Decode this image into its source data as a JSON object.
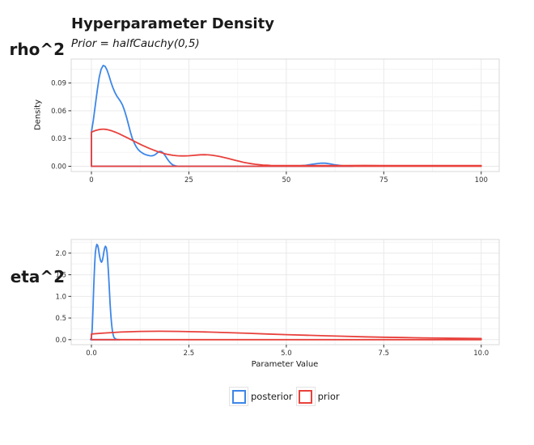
{
  "figure": {
    "title": "Hyperparameter Density",
    "subtitle": "Prior = halfCauchy(0,5)",
    "x_axis_title": "Parameter Value",
    "y_axis_title": "Density",
    "colors": {
      "posterior": "#3D86E8",
      "prior": "#E8413C",
      "grid_major": "#E9E9E9",
      "grid_minor": "#F4F4F4",
      "panel_border": "#D8D8D8",
      "tick_text": "#333333"
    },
    "legend": {
      "items": [
        {
          "label": "posterior",
          "color": "#3D86E8"
        },
        {
          "label": "prior",
          "color": "#E8413C"
        }
      ]
    }
  },
  "chart_data": [
    {
      "type": "area",
      "facet": "rho^2",
      "xlim": [
        -5.19,
        104.62
      ],
      "ylim": [
        -0.0057,
        0.1159
      ],
      "x_tick_values": [
        0,
        25,
        50,
        75,
        100
      ],
      "x_tick_labels": [
        "0",
        "25",
        "50",
        "75",
        "100"
      ],
      "x_minor": [
        12.5,
        37.5,
        62.5,
        87.5
      ],
      "y_tick_values": [
        0,
        0.03,
        0.06,
        0.09
      ],
      "y_tick_labels": [
        "0.00",
        "0.03",
        "0.06",
        "0.09"
      ],
      "y_minor": [
        0.015,
        0.045,
        0.075,
        0.105
      ],
      "series": [
        {
          "name": "posterior",
          "points": [
            [
              0,
              0
            ],
            [
              0,
              0.037
            ],
            [
              0.5,
              0.05
            ],
            [
              1,
              0.066
            ],
            [
              1.5,
              0.082
            ],
            [
              2,
              0.096
            ],
            [
              2.5,
              0.105
            ],
            [
              3,
              0.109
            ],
            [
              3.5,
              0.108
            ],
            [
              4,
              0.104
            ],
            [
              4.5,
              0.098
            ],
            [
              5,
              0.091
            ],
            [
              5.5,
              0.085
            ],
            [
              6,
              0.08
            ],
            [
              6.5,
              0.076
            ],
            [
              7,
              0.073
            ],
            [
              7.5,
              0.07
            ],
            [
              8,
              0.066
            ],
            [
              8.5,
              0.06
            ],
            [
              9,
              0.053
            ],
            [
              9.5,
              0.045
            ],
            [
              10,
              0.037
            ],
            [
              10.5,
              0.03
            ],
            [
              11,
              0.025
            ],
            [
              11.5,
              0.021
            ],
            [
              12,
              0.018
            ],
            [
              12.5,
              0.016
            ],
            [
              13,
              0.0145
            ],
            [
              13.5,
              0.0133
            ],
            [
              14,
              0.0124
            ],
            [
              14.5,
              0.0118
            ],
            [
              15,
              0.0114
            ],
            [
              15.5,
              0.0113
            ],
            [
              16,
              0.0118
            ],
            [
              16.5,
              0.013
            ],
            [
              17,
              0.0148
            ],
            [
              17.5,
              0.016
            ],
            [
              18,
              0.0158
            ],
            [
              18.5,
              0.014
            ],
            [
              19,
              0.011
            ],
            [
              19.5,
              0.0077
            ],
            [
              20,
              0.0048
            ],
            [
              20.5,
              0.0026
            ],
            [
              21,
              0.0012
            ],
            [
              21.5,
              0.0005
            ],
            [
              22,
              0.0001
            ],
            [
              23,
              0
            ],
            [
              50,
              0
            ],
            [
              53,
              0.0003
            ],
            [
              55,
              0.001
            ],
            [
              56.5,
              0.002
            ],
            [
              58,
              0.003
            ],
            [
              59,
              0.0034
            ],
            [
              60,
              0.0033
            ],
            [
              61,
              0.0027
            ],
            [
              62.5,
              0.0016
            ],
            [
              64,
              0.0007
            ],
            [
              65.5,
              0.0002
            ],
            [
              67,
              0
            ]
          ]
        },
        {
          "name": "prior",
          "points": [
            [
              0,
              0
            ],
            [
              0,
              0.0368
            ],
            [
              0.5,
              0.0378
            ],
            [
              1,
              0.0386
            ],
            [
              1.5,
              0.0392
            ],
            [
              2,
              0.0397
            ],
            [
              2.5,
              0.04
            ],
            [
              3,
              0.0401
            ],
            [
              3.5,
              0.04
            ],
            [
              4,
              0.0397
            ],
            [
              4.5,
              0.0392
            ],
            [
              5,
              0.0386
            ],
            [
              5.5,
              0.0379
            ],
            [
              6,
              0.0371
            ],
            [
              7,
              0.0353
            ],
            [
              8,
              0.0333
            ],
            [
              9,
              0.0312
            ],
            [
              10,
              0.0291
            ],
            [
              11,
              0.0269
            ],
            [
              12,
              0.0248
            ],
            [
              13,
              0.0228
            ],
            [
              14,
              0.0209
            ],
            [
              15,
              0.0191
            ],
            [
              16,
              0.0174
            ],
            [
              17,
              0.0159
            ],
            [
              18,
              0.0146
            ],
            [
              19,
              0.0134
            ],
            [
              20,
              0.0125
            ],
            [
              21,
              0.0118
            ],
            [
              22,
              0.0114
            ],
            [
              23,
              0.0112
            ],
            [
              24,
              0.0112
            ],
            [
              25,
              0.0114
            ],
            [
              26,
              0.0117
            ],
            [
              27,
              0.0121
            ],
            [
              28,
              0.0124
            ],
            [
              29,
              0.0125
            ],
            [
              30,
              0.0123
            ],
            [
              31,
              0.0119
            ],
            [
              32,
              0.0113
            ],
            [
              33,
              0.0105
            ],
            [
              34,
              0.0095
            ],
            [
              35,
              0.0085
            ],
            [
              36,
              0.0074
            ],
            [
              37,
              0.0063
            ],
            [
              38,
              0.0053
            ],
            [
              39,
              0.0043
            ],
            [
              40,
              0.0035
            ],
            [
              41,
              0.0028
            ],
            [
              42,
              0.0022
            ],
            [
              43,
              0.0017
            ],
            [
              44,
              0.0013
            ],
            [
              45,
              0.0011
            ],
            [
              46,
              0.0009
            ],
            [
              48,
              0.0008
            ],
            [
              50,
              0.0007
            ],
            [
              55,
              0.0007
            ],
            [
              60,
              0.0008
            ],
            [
              65,
              0.0008
            ],
            [
              70,
              0.0009
            ],
            [
              75,
              0.0008
            ],
            [
              80,
              0.0008
            ],
            [
              85,
              0.0008
            ],
            [
              90,
              0.0008
            ],
            [
              95,
              0.0008
            ],
            [
              100,
              0.0008
            ],
            [
              100,
              0
            ]
          ]
        }
      ]
    },
    {
      "type": "area",
      "facet": "eta^2",
      "xlim": [
        -0.519,
        10.462
      ],
      "ylim": [
        -0.116,
        2.315
      ],
      "x_tick_values": [
        0,
        2.5,
        5,
        7.5,
        10
      ],
      "x_tick_labels": [
        "0.0",
        "2.5",
        "5.0",
        "7.5",
        "10.0"
      ],
      "x_minor": [
        1.25,
        3.75,
        6.25,
        8.75
      ],
      "y_tick_values": [
        0,
        0.5,
        1,
        1.5,
        2
      ],
      "y_tick_labels": [
        "0.0",
        "0.5",
        "1.0",
        "1.5",
        "2.0"
      ],
      "y_minor": [
        0.25,
        0.75,
        1.25,
        1.75,
        2.25
      ],
      "series": [
        {
          "name": "posterior",
          "points": [
            [
              -0.02,
              0
            ],
            [
              0,
              0.05
            ],
            [
              0.02,
              0.25
            ],
            [
              0.04,
              0.7
            ],
            [
              0.06,
              1.25
            ],
            [
              0.08,
              1.7
            ],
            [
              0.1,
              2
            ],
            [
              0.12,
              2.14
            ],
            [
              0.14,
              2.2
            ],
            [
              0.16,
              2.18
            ],
            [
              0.18,
              2.1
            ],
            [
              0.2,
              1.98
            ],
            [
              0.22,
              1.88
            ],
            [
              0.24,
              1.81
            ],
            [
              0.26,
              1.79
            ],
            [
              0.28,
              1.83
            ],
            [
              0.3,
              1.92
            ],
            [
              0.32,
              2.03
            ],
            [
              0.34,
              2.12
            ],
            [
              0.36,
              2.16
            ],
            [
              0.38,
              2.13
            ],
            [
              0.4,
              2.02
            ],
            [
              0.42,
              1.8
            ],
            [
              0.44,
              1.5
            ],
            [
              0.46,
              1.15
            ],
            [
              0.48,
              0.82
            ],
            [
              0.5,
              0.54
            ],
            [
              0.52,
              0.33
            ],
            [
              0.54,
              0.19
            ],
            [
              0.56,
              0.1
            ],
            [
              0.58,
              0.05
            ],
            [
              0.61,
              0.02
            ],
            [
              0.64,
              0.008
            ],
            [
              0.68,
              0.002
            ],
            [
              0.72,
              0
            ]
          ]
        },
        {
          "name": "prior",
          "points": [
            [
              0,
              0
            ],
            [
              0,
              0.13
            ],
            [
              0.25,
              0.148
            ],
            [
              0.5,
              0.163
            ],
            [
              0.75,
              0.175
            ],
            [
              1,
              0.184
            ],
            [
              1.25,
              0.19
            ],
            [
              1.5,
              0.193
            ],
            [
              1.75,
              0.194
            ],
            [
              2,
              0.193
            ],
            [
              2.25,
              0.19
            ],
            [
              2.5,
              0.186
            ],
            [
              2.75,
              0.181
            ],
            [
              3,
              0.175
            ],
            [
              3.5,
              0.162
            ],
            [
              4,
              0.148
            ],
            [
              4.5,
              0.131
            ],
            [
              5,
              0.115
            ],
            [
              5.5,
              0.102
            ],
            [
              6,
              0.09
            ],
            [
              6.5,
              0.078
            ],
            [
              7,
              0.066
            ],
            [
              7.5,
              0.056
            ],
            [
              8,
              0.048
            ],
            [
              8.5,
              0.041
            ],
            [
              9,
              0.035
            ],
            [
              9.5,
              0.03
            ],
            [
              10,
              0.026
            ],
            [
              10,
              0
            ]
          ]
        }
      ]
    }
  ]
}
